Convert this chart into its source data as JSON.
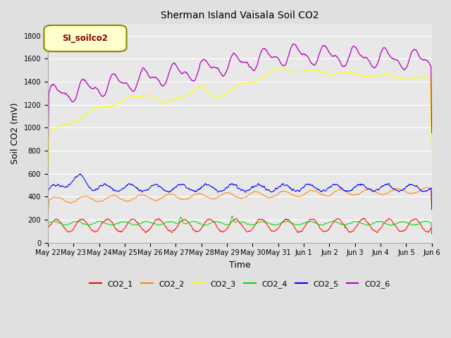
{
  "title": "Sherman Island Vaisala Soil CO2",
  "ylabel": "Soil CO2 (mV)",
  "xlabel": "Time",
  "legend_label": "SI_soilco2",
  "ylim": [
    0,
    1900
  ],
  "yticks": [
    0,
    200,
    400,
    600,
    800,
    1000,
    1200,
    1400,
    1600,
    1800
  ],
  "xtick_labels": [
    "May 22",
    "May 23",
    "May 24",
    "May 25",
    "May 26",
    "May 27",
    "May 28",
    "May 29",
    "May 30",
    "May 31",
    "Jun 1",
    "Jun 2",
    "Jun 3",
    "Jun 4",
    "Jun 5",
    "Jun 6"
  ],
  "series_colors": {
    "CO2_1": "#ff0000",
    "CO2_2": "#ff8800",
    "CO2_3": "#ffff00",
    "CO2_4": "#00dd00",
    "CO2_5": "#0000ff",
    "CO2_6": "#bb00bb"
  },
  "fig_bg_color": "#e0e0e0",
  "plot_bg_color": "#e8e8e8",
  "grid_color": "#ffffff",
  "legend_box_facecolor": "#ffffcc",
  "legend_box_edgecolor": "#888800",
  "legend_text_color": "#880000",
  "title_fontsize": 10,
  "ylabel_fontsize": 9,
  "xlabel_fontsize": 9,
  "tick_fontsize": 7,
  "legend_fontsize": 8
}
